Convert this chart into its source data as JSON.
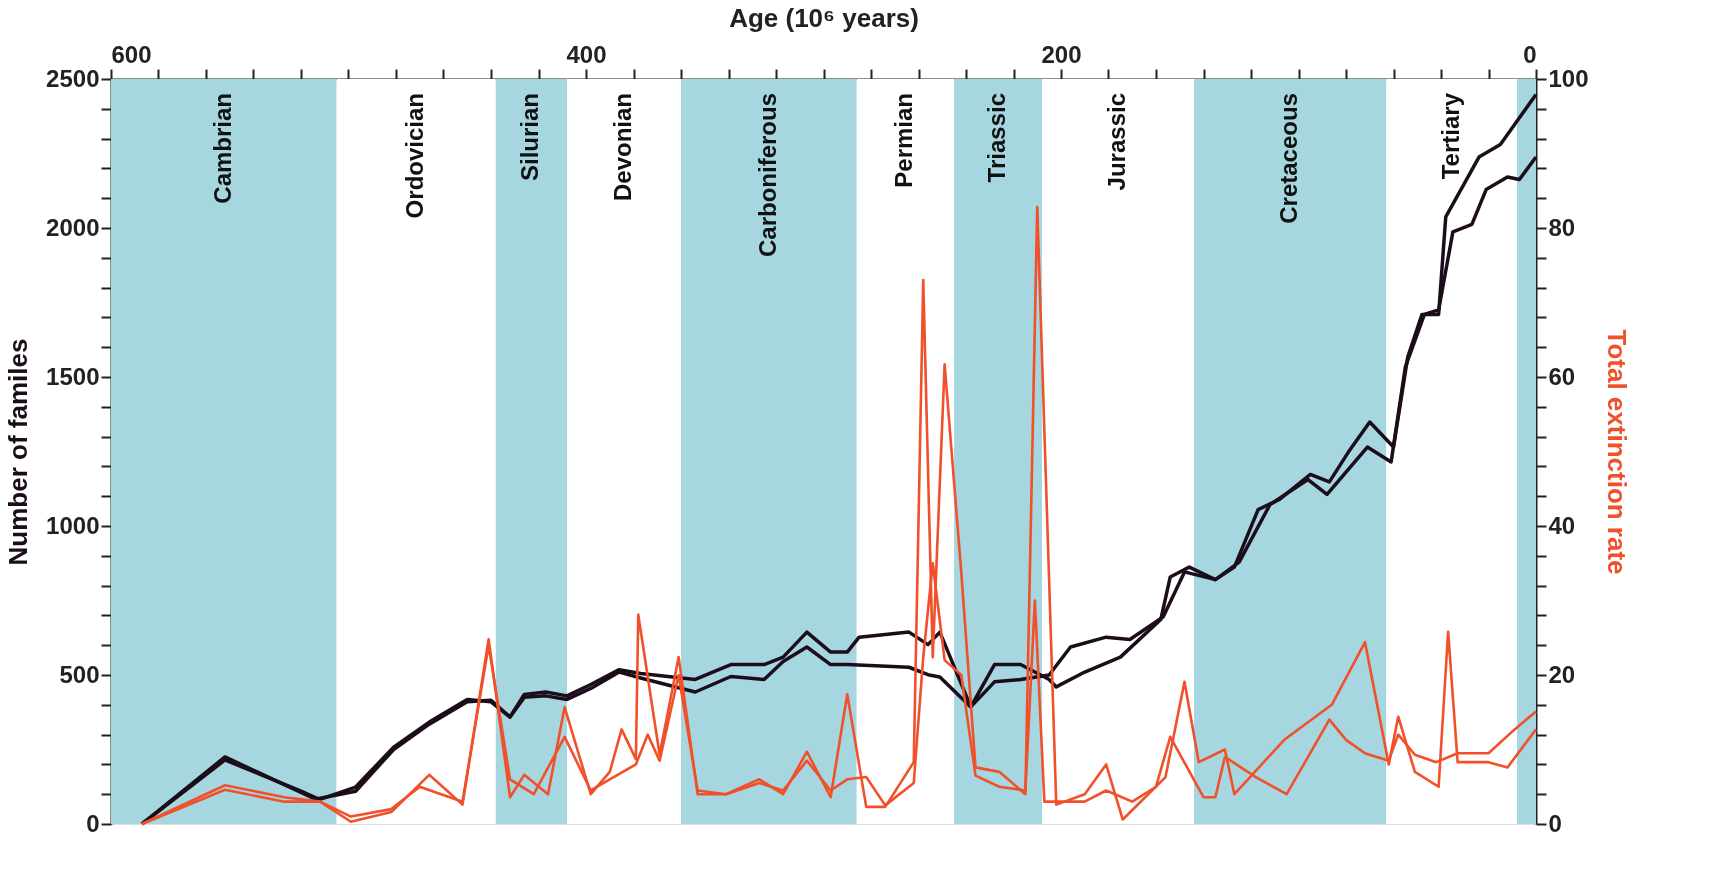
{
  "chart_data": {
    "type": "line",
    "xlabel": "Age (10⁶ years)",
    "ylabel": "Number of familes",
    "y2label": "Total extinction rate",
    "xlim": [
      600,
      0
    ],
    "xticks": [
      600,
      {
        "value": 580,
        "label": null
      },
      {
        "value": 560,
        "label": null
      },
      {
        "value": 540,
        "label": null
      },
      {
        "value": 520,
        "label": null
      },
      {
        "value": 500,
        "label": null
      },
      {
        "value": 480,
        "label": null
      },
      {
        "value": 460,
        "label": null
      },
      {
        "value": 440,
        "label": null
      },
      {
        "value": 420,
        "label": null
      },
      400,
      {
        "value": 380,
        "label": null
      },
      {
        "value": 360,
        "label": null
      },
      {
        "value": 340,
        "label": null
      },
      {
        "value": 320,
        "label": null
      },
      {
        "value": 300,
        "label": null
      },
      {
        "value": 280,
        "label": null
      },
      {
        "value": 260,
        "label": null
      },
      {
        "value": 240,
        "label": null
      },
      {
        "value": 220,
        "label": null
      },
      200,
      {
        "value": 180,
        "label": null
      },
      {
        "value": 160,
        "label": null
      },
      {
        "value": 140,
        "label": null
      },
      {
        "value": 120,
        "label": null
      },
      {
        "value": 100,
        "label": null
      },
      {
        "value": 80,
        "label": null
      },
      {
        "value": 60,
        "label": null
      },
      {
        "value": 40,
        "label": null
      },
      {
        "value": 20,
        "label": null
      },
      0
    ],
    "ylim": [
      0,
      2500
    ],
    "yticks": [
      0,
      {
        "value": 100,
        "label": null
      },
      {
        "value": 200,
        "label": null
      },
      {
        "value": 300,
        "label": null
      },
      {
        "value": 400,
        "label": null
      },
      500,
      {
        "value": 600,
        "label": null
      },
      {
        "value": 700,
        "label": null
      },
      {
        "value": 800,
        "label": null
      },
      {
        "value": 900,
        "label": null
      },
      1000,
      {
        "value": 1100,
        "label": null
      },
      {
        "value": 1200,
        "label": null
      },
      {
        "value": 1300,
        "label": null
      },
      {
        "value": 1400,
        "label": null
      },
      1500,
      {
        "value": 1600,
        "label": null
      },
      {
        "value": 1700,
        "label": null
      },
      {
        "value": 1800,
        "label": null
      },
      {
        "value": 1900,
        "label": null
      },
      2000,
      {
        "value": 2100,
        "label": null
      },
      {
        "value": 2200,
        "label": null
      },
      {
        "value": 2300,
        "label": null
      },
      {
        "value": 2400,
        "label": null
      },
      2500
    ],
    "y2lim": [
      0,
      100
    ],
    "y2ticks": [
      0,
      {
        "value": 4,
        "label": null
      },
      {
        "value": 8,
        "label": null
      },
      {
        "value": 12,
        "label": null
      },
      {
        "value": 16,
        "label": null
      },
      20,
      {
        "value": 24,
        "label": null
      },
      {
        "value": 28,
        "label": null
      },
      {
        "value": 32,
        "label": null
      },
      {
        "value": 36,
        "label": null
      },
      40,
      {
        "value": 44,
        "label": null
      },
      {
        "value": 48,
        "label": null
      },
      {
        "value": 52,
        "label": null
      },
      {
        "value": 56,
        "label": null
      },
      60,
      {
        "value": 64,
        "label": null
      },
      {
        "value": 68,
        "label": null
      },
      {
        "value": 72,
        "label": null
      },
      {
        "value": 76,
        "label": null
      },
      80,
      {
        "value": 84,
        "label": null
      },
      {
        "value": 88,
        "label": null
      },
      {
        "value": 92,
        "label": null
      },
      {
        "value": 96,
        "label": null
      },
      100
    ],
    "grid": false,
    "bands": [
      {
        "axis": "x",
        "from": 600,
        "to": 505,
        "label": "Cambrian",
        "color": "#a6d7e0"
      },
      {
        "axis": "x",
        "from": 505,
        "to": 438,
        "label": "Ordovician",
        "color": "#ffffff"
      },
      {
        "axis": "x",
        "from": 438,
        "to": 408,
        "label": "Silurian",
        "color": "#a6d7e0"
      },
      {
        "axis": "x",
        "from": 408,
        "to": 360,
        "label": "Devonian",
        "color": "#ffffff"
      },
      {
        "axis": "x",
        "from": 360,
        "to": 286,
        "label": "Carboniferous",
        "color": "#a6d7e0"
      },
      {
        "axis": "x",
        "from": 286,
        "to": 245,
        "label": "Permian",
        "color": "#ffffff"
      },
      {
        "axis": "x",
        "from": 245,
        "to": 208,
        "label": "Triassic",
        "color": "#a6d7e0"
      },
      {
        "axis": "x",
        "from": 208,
        "to": 144,
        "label": "Jurassic",
        "color": "#ffffff"
      },
      {
        "axis": "x",
        "from": 144,
        "to": 63,
        "label": "Cretaceous",
        "color": "#a6d7e0"
      },
      {
        "axis": "x",
        "from": 63,
        "to": 8,
        "label": "Tertiary",
        "color": "#ffffff"
      },
      {
        "axis": "x",
        "from": 8,
        "to": 0,
        "label": null,
        "color": "#a6d7e0"
      }
    ],
    "series": [
      {
        "color": "#1c0d1a",
        "x": [
          587,
          552,
          513,
          497,
          481,
          466,
          450,
          440,
          432,
          426,
          417,
          408,
          398,
          386,
          377,
          354,
          339,
          325,
          317,
          307,
          297,
          290,
          285,
          264,
          256,
          251,
          238,
          228,
          217,
          205,
          202,
          190,
          175,
          158,
          154,
          146,
          135,
          127,
          117,
          108,
          95,
          87,
          79,
          70,
          60,
          54,
          48,
          41,
          38,
          24,
          15,
          0
        ],
        "values": [
          0,
          225,
          80,
          124,
          258,
          342,
          418,
          410,
          359,
          435,
          443,
          430,
          468,
          518,
          505,
          485,
          535,
          535,
          560,
          644,
          577,
          577,
          627,
          644,
          602,
          644,
          393,
          535,
          535,
          485,
          460,
          510,
          560,
          686,
          829,
          862,
          820,
          862,
          1055,
          1089,
          1173,
          1148,
          1248,
          1349,
          1265,
          1567,
          1710,
          1710,
          2037,
          2238,
          2280,
          2448
        ]
      },
      {
        "color": "#1c0d1a",
        "x": [
          587,
          552,
          520,
          513,
          497,
          481,
          466,
          450,
          440,
          432,
          426,
          417,
          408,
          398,
          386,
          377,
          354,
          339,
          325,
          317,
          307,
          297,
          290,
          264,
          256,
          251,
          238,
          228,
          217,
          205,
          196,
          181,
          171,
          157,
          148,
          135,
          125,
          112,
          96,
          88,
          71,
          61,
          55,
          47,
          41,
          35,
          27,
          21,
          12,
          7,
          0
        ],
        "values": [
          0,
          215,
          110,
          85,
          110,
          250,
          335,
          410,
          415,
          359,
          425,
          430,
          418,
          455,
          510,
          490,
          443,
          495,
          485,
          545,
          594,
          535,
          535,
          526,
          501,
          493,
          393,
          477,
          485,
          500,
          594,
          627,
          619,
          695,
          846,
          820,
          879,
          1072,
          1156,
          1106,
          1265,
          1215,
          1534,
          1710,
          1725,
          1987,
          2012,
          2129,
          2171,
          2163,
          2238
        ]
      },
      {
        "axis": "y2",
        "color": "#f0502a",
        "x": [
          587,
          552,
          527,
          512,
          499,
          482,
          466,
          452,
          441,
          432,
          426,
          416,
          409,
          398,
          390,
          385,
          379,
          378,
          369,
          361,
          353,
          341,
          327,
          317,
          307,
          297,
          290,
          282,
          274,
          262,
          258,
          254,
          249,
          242,
          236,
          226,
          215,
          210,
          202,
          190,
          181,
          174,
          156,
          148,
          142,
          131,
          127,
          106,
          86,
          72,
          62,
          58,
          51,
          41,
          37,
          33,
          20,
          12,
          0
        ],
        "values": [
          0,
          4.6,
          3.0,
          3.0,
          0.3,
          1.6,
          6.6,
          2.6,
          24.8,
          3.6,
          6.6,
          4.0,
          15.7,
          4.0,
          7.0,
          12.7,
          8.7,
          28.1,
          9.3,
          22.4,
          4.0,
          4.0,
          6.0,
          4.0,
          9.7,
          3.6,
          17.4,
          2.3,
          2.3,
          8.3,
          73,
          22.4,
          61.7,
          33.8,
          7.6,
          7.0,
          4.0,
          82.8,
          2.6,
          4.0,
          8.0,
          0.6,
          6.3,
          19.1,
          8.3,
          10.0,
          4.0,
          11.3,
          16.0,
          24.4,
          8.0,
          14.4,
          7.0,
          5.0,
          25.8,
          8.3,
          8.3,
          7.6,
          12.7
        ]
      },
      {
        "axis": "y2",
        "color": "#f0502a",
        "x": [
          587,
          552,
          527,
          512,
          499,
          482,
          470,
          452,
          441,
          432,
          422,
          409,
          398,
          390,
          379,
          374,
          369,
          361,
          353,
          341,
          327,
          317,
          307,
          297,
          290,
          282,
          274,
          262,
          258,
          254,
          249,
          242,
          236,
          226,
          215,
          211,
          207,
          190,
          181,
          170,
          160,
          154,
          140,
          135,
          131,
          118,
          105,
          87,
          80,
          72,
          62,
          58,
          51,
          42,
          33,
          20,
          9,
          0
        ],
        "values": [
          0,
          5.2,
          3.6,
          3.0,
          1.0,
          2.0,
          5.0,
          3.0,
          24.0,
          6.0,
          4.0,
          11.7,
          4.5,
          6.0,
          8.0,
          12.0,
          8.5,
          20.0,
          4.5,
          4.0,
          5.5,
          4.5,
          8.5,
          4.5,
          6.0,
          6.3,
          2.5,
          5.5,
          22.4,
          35.0,
          22.0,
          20.0,
          6.5,
          5.0,
          4.5,
          30.0,
          3.0,
          3.0,
          4.5,
          3.0,
          5.0,
          11.7,
          3.6,
          3.6,
          9.0,
          6.3,
          4.0,
          14.0,
          11.3,
          9.5,
          8.5,
          12.0,
          9.3,
          8.3,
          9.5,
          9.5,
          12.7,
          15.1
        ]
      }
    ]
  }
}
